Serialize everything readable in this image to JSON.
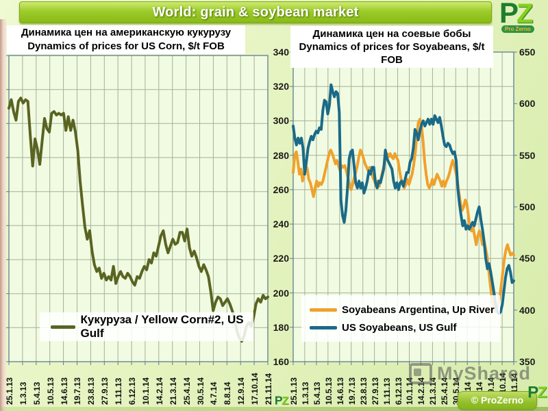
{
  "header": {
    "title": "World: grain & soybean market"
  },
  "logo": {
    "letters_p": "P",
    "letters_z": "Z",
    "subtitle": "Pro Zerno"
  },
  "footer": {
    "watermark": "MyShared",
    "copyright": "© ProZerno"
  },
  "colors": {
    "header_green": "#93c51d",
    "slide_bg": "#e4f3c2",
    "plot_bg": "#f1fbe2",
    "grid_line": "#a3b195",
    "axis_line": "#5e7d8c",
    "corn_line": "#5a6422",
    "argentina_line": "#f0a12b",
    "us_soy_line": "#1a6a88",
    "watermark_gray": "#5f5f5f",
    "pill_green": "#93c02c"
  },
  "chart_data": [
    {
      "type": "line",
      "title_lines": [
        "Динамика цен на американскую кукурузу",
        "Dynamics of prices for US Corn, $/t FOB"
      ],
      "x_tick_labels": [
        "25.1.13",
        "1.3.13",
        "5.4.13",
        "10.5.13",
        "14.6.13",
        "19.7.13",
        "23.8.13",
        "27.9.13",
        "1.11.13",
        "6.12.13",
        "10.1.14",
        "14.2.14",
        "21.3.14",
        "25.4.14",
        "30.5.14",
        "4.7.14",
        "8.8.14",
        "12.9.14",
        "17.10.14",
        "21.11.14"
      ],
      "ylim": [
        160,
        340
      ],
      "yticks": [
        160,
        180,
        200,
        220,
        240,
        260,
        280,
        300,
        320,
        340
      ],
      "y_axis_labels_visible": false,
      "grid": true,
      "legend_position": "inside-bottom-left",
      "series": [
        {
          "name": "Кукуруза / Yellow Corn#2, US Gulf",
          "color": "#5a6422",
          "values": [
            309,
            314,
            307,
            302,
            313,
            315,
            312,
            314,
            313,
            293,
            275,
            291,
            285,
            276,
            290,
            303,
            297,
            295,
            306,
            307,
            305,
            306,
            305,
            306,
            296,
            304,
            296,
            302,
            295,
            284,
            266,
            252,
            239,
            232,
            237,
            225,
            217,
            213,
            215,
            209,
            212,
            208,
            210,
            208,
            216,
            206,
            210,
            213,
            210,
            209,
            212,
            210,
            207,
            205,
            210,
            209,
            213,
            216,
            214,
            220,
            218,
            224,
            222,
            228,
            234,
            237,
            229,
            224,
            228,
            232,
            229,
            230,
            236,
            236,
            231,
            238,
            227,
            222,
            225,
            221,
            216,
            213,
            217,
            214,
            210,
            201,
            190,
            195,
            198,
            197,
            193,
            195,
            197,
            194,
            190,
            185,
            178,
            174,
            172,
            175,
            181,
            183,
            181,
            186,
            194,
            197,
            195,
            199,
            197,
            198
          ]
        }
      ]
    },
    {
      "type": "line",
      "title_lines": [
        "Динамика цен на соевые бобы",
        "Dynamics of prices for Soyabeans, $/t",
        "FOB"
      ],
      "x_tick_labels": [
        "25.1.13",
        "1.3.13",
        "5.4.13",
        "10.5.13",
        "14.6.13",
        "19.7.13",
        "23.8.13",
        "27.9.13",
        "1.11.13",
        "6.12.13",
        "10.1.14",
        "14.2.14",
        "21.3.14",
        "25.4.14",
        "30.5.14",
        "4.7.14",
        "8.8.14",
        "12.9.14",
        "17.10.14",
        "21.11.14"
      ],
      "ylim": [
        160,
        340
      ],
      "yticks": [
        160,
        180,
        200,
        220,
        240,
        260,
        280,
        300,
        320,
        340
      ],
      "ylim_right": [
        350,
        650
      ],
      "yticks_right": [
        350,
        400,
        450,
        500,
        550,
        600,
        650
      ],
      "grid": true,
      "legend_position": "inside-bottom-left",
      "series": [
        {
          "name": "Soyabeans Argentina, Up River",
          "color": "#f0a12b",
          "values": [
            270,
            280,
            282,
            276,
            269,
            272,
            265,
            269,
            274,
            272,
            266,
            264,
            260,
            256,
            261,
            265,
            262,
            264,
            263,
            265,
            269,
            273,
            277,
            281,
            283,
            281,
            278,
            275,
            277,
            274,
            271,
            274,
            273,
            274,
            271,
            267,
            263,
            260,
            263,
            267,
            270,
            274,
            279,
            283,
            281,
            278,
            275,
            273,
            271,
            273,
            270,
            267,
            265,
            262,
            265,
            262,
            266,
            270,
            274,
            278,
            281,
            279,
            281,
            279,
            278,
            281,
            279,
            277,
            271,
            266,
            263,
            261,
            263,
            266,
            263,
            266,
            269,
            274,
            281,
            291,
            299,
            301,
            297,
            289,
            277,
            269,
            263,
            261,
            263,
            266,
            263,
            266,
            269,
            267,
            265,
            262,
            265,
            262,
            265,
            267,
            270,
            274,
            277,
            274,
            270,
            265,
            258,
            252,
            248,
            250,
            254,
            252,
            245,
            238,
            236,
            238,
            233,
            228,
            233,
            236,
            233,
            228,
            230,
            226,
            221,
            213,
            205,
            197,
            192,
            189,
            190,
            193,
            197,
            204,
            212,
            220,
            225,
            228,
            225,
            222,
            223,
            222
          ]
        },
        {
          "name": "US Soyabeans, US Gulf",
          "color": "#1a6a88",
          "values": [
            297,
            290,
            286,
            290,
            287,
            290,
            284,
            269,
            276,
            284,
            288,
            291,
            289,
            292,
            294,
            293,
            296,
            295,
            306,
            312,
            311,
            304,
            309,
            321,
            317,
            314,
            317,
            316,
            305,
            254,
            245,
            241,
            248,
            261,
            278,
            282,
            283,
            274,
            264,
            261,
            265,
            261,
            264,
            258,
            261,
            265,
            271,
            269,
            273,
            273,
            264,
            261,
            265,
            264,
            268,
            272,
            283,
            278,
            276,
            274,
            272,
            265,
            261,
            264,
            260,
            264,
            265,
            262,
            266,
            270,
            270,
            276,
            278,
            284,
            295,
            293,
            289,
            294,
            298,
            300,
            297,
            299,
            301,
            298,
            301,
            298,
            303,
            301,
            299,
            302,
            297,
            291,
            286,
            285,
            287,
            286,
            283,
            281,
            282,
            277,
            261,
            252,
            245,
            239,
            242,
            237,
            239,
            237,
            239,
            241,
            239,
            243,
            247,
            250,
            243,
            237,
            230,
            220,
            214,
            217,
            212,
            206,
            200,
            193,
            189,
            188,
            189,
            193,
            201,
            209,
            214,
            216,
            212,
            206,
            207
          ]
        }
      ]
    }
  ]
}
